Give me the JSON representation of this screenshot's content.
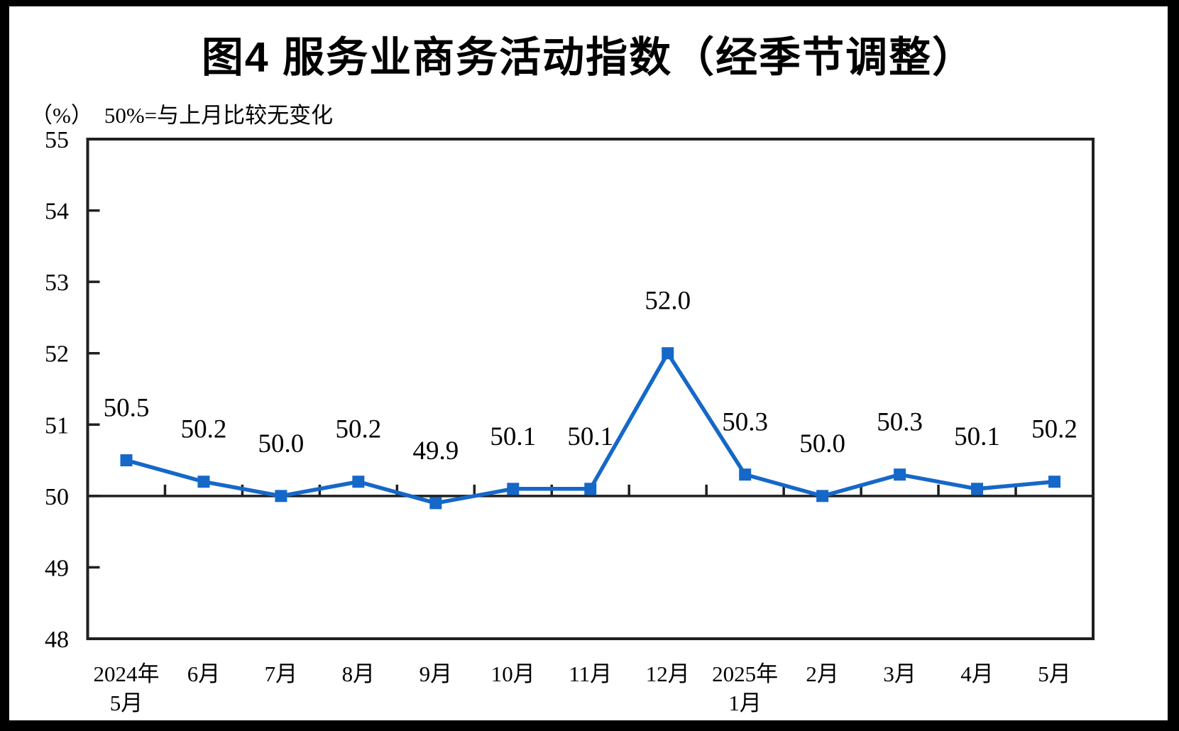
{
  "chart_data": {
    "type": "line",
    "title": "图4  服务业商务活动指数（经季节调整）",
    "unit_label": "（%）",
    "subtitle": "50%=与上月比较无变化",
    "categories": [
      [
        "2024年",
        "5月"
      ],
      [
        "6月"
      ],
      [
        "7月"
      ],
      [
        "8月"
      ],
      [
        "9月"
      ],
      [
        "10月"
      ],
      [
        "11月"
      ],
      [
        "12月"
      ],
      [
        "2025年",
        "1月"
      ],
      [
        "2月"
      ],
      [
        "3月"
      ],
      [
        "4月"
      ],
      [
        "5月"
      ]
    ],
    "values": [
      50.5,
      50.2,
      50.0,
      50.2,
      49.9,
      50.1,
      50.1,
      52.0,
      50.3,
      50.0,
      50.3,
      50.1,
      50.2
    ],
    "data_labels": [
      "50.5",
      "50.2",
      "50.0",
      "50.2",
      "49.9",
      "50.1",
      "50.1",
      "52.0",
      "50.3",
      "50.0",
      "50.3",
      "50.1",
      "50.2"
    ],
    "ylim": [
      48,
      55
    ],
    "yticks": [
      48,
      49,
      50,
      51,
      52,
      53,
      54,
      55
    ],
    "reference_line": 50,
    "marker": "square",
    "line_color": "#1568c8",
    "axis_color": "#1f1f1f",
    "text_color": "#000000",
    "grid": "off",
    "legend": "none"
  }
}
